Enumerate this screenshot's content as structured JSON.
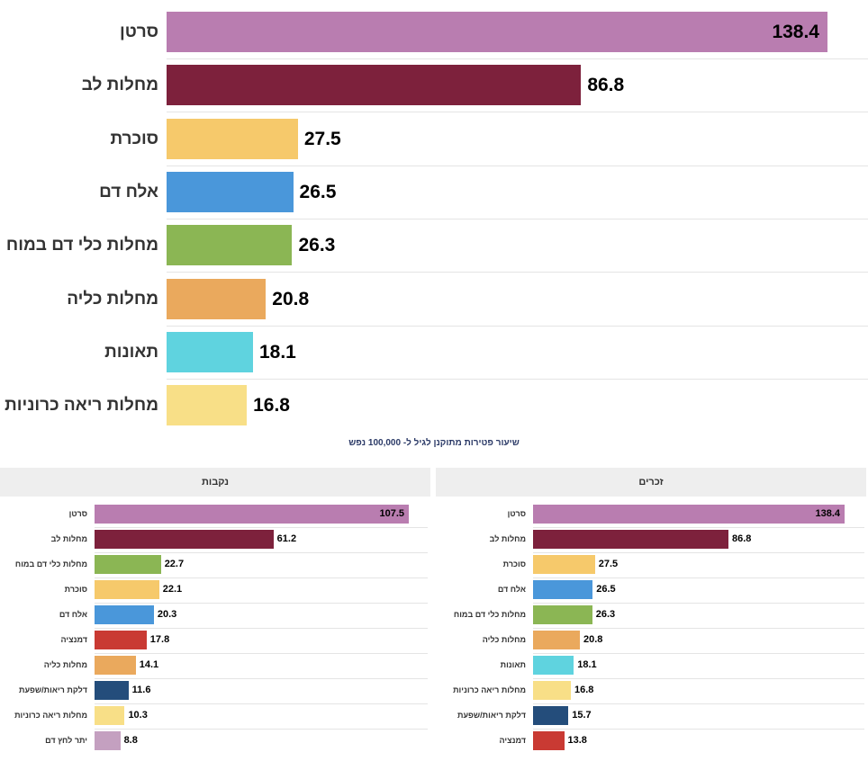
{
  "subtitle": "שיעור פטירות מתוקנן לגיל ל- 100,000 נפש",
  "chart_data": [
    {
      "type": "bar",
      "orientation": "horizontal",
      "categories": [
        "סרטן",
        "מחלות לב",
        "סוכרת",
        "אלח דם",
        "מחלות כלי דם במוח",
        "מחלות כליה",
        "תאונות",
        "מחלות ריאה כרוניות"
      ],
      "values": [
        138.4,
        86.8,
        27.5,
        26.5,
        26.3,
        20.8,
        18.1,
        16.8
      ],
      "colors": [
        "#b97db0",
        "#7d213c",
        "#f6c96b",
        "#4a97da",
        "#8bb654",
        "#eaa95d",
        "#5fd3df",
        "#f8df87"
      ],
      "grid": false
    },
    {
      "type": "bar",
      "orientation": "horizontal",
      "title": "נקבות",
      "categories": [
        "סרטן",
        "מחלות לב",
        "מחלות כלי דם במוח",
        "סוכרת",
        "אלח דם",
        "דמנציה",
        "מחלות כליה",
        "דלקת ריאות/שפעת",
        "מחלות ריאה כרוניות",
        "יתר לחץ דם"
      ],
      "values": [
        107.5,
        61.2,
        22.7,
        22.1,
        20.3,
        17.8,
        14.1,
        11.6,
        10.3,
        8.8
      ],
      "colors": [
        "#b97db0",
        "#7d213c",
        "#8bb654",
        "#f6c96b",
        "#4a97da",
        "#c93a33",
        "#eaa95d",
        "#244d7b",
        "#f8df87",
        "#c4a0c0"
      ],
      "grid": false
    },
    {
      "type": "bar",
      "orientation": "horizontal",
      "title": "זכרים",
      "categories": [
        "סרטן",
        "מחלות לב",
        "סוכרת",
        "אלח דם",
        "מחלות כלי דם במוח",
        "מחלות כליה",
        "תאונות",
        "מחלות ריאה כרוניות",
        "דלקת ריאות/שפעת",
        "דמנציה"
      ],
      "values": [
        138.4,
        86.8,
        27.5,
        26.5,
        26.3,
        20.8,
        18.1,
        16.8,
        15.7,
        13.8
      ],
      "colors": [
        "#b97db0",
        "#7d213c",
        "#f6c96b",
        "#4a97da",
        "#8bb654",
        "#eaa95d",
        "#5fd3df",
        "#f8df87",
        "#244d7b",
        "#c93a33"
      ],
      "grid": false
    }
  ]
}
